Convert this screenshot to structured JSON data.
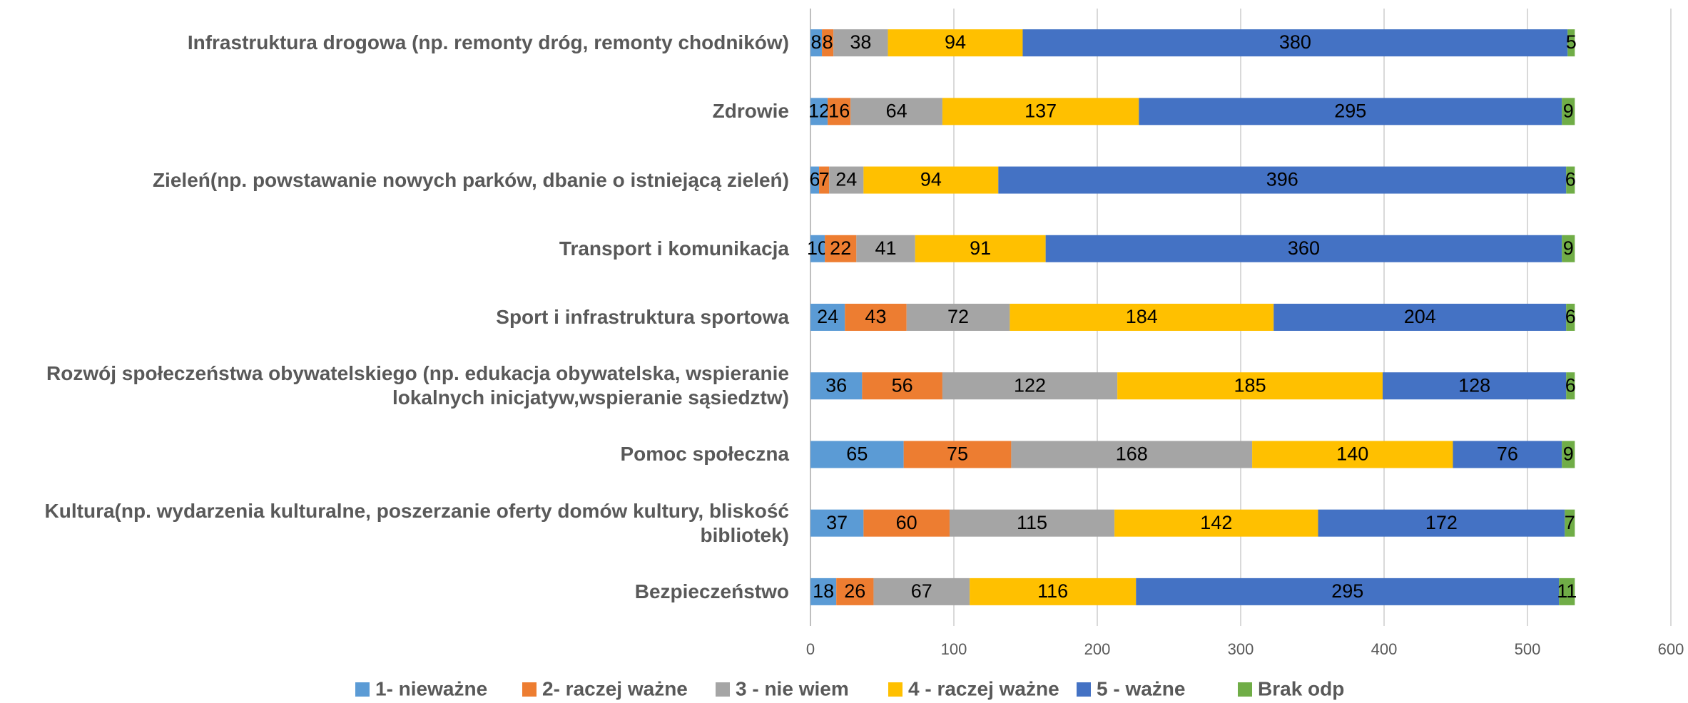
{
  "chart_data": {
    "type": "stacked_bar_horizontal",
    "categories": [
      "Infrastruktura drogowa (np. remonty dróg, remonty chodników)",
      "Zdrowie",
      "Zieleń(np. powstawanie nowych parków, dbanie o istniejącą zieleń)",
      "Transport i komunikacja",
      "Sport i infrastruktura sportowa",
      "Rozwój społeczeństwa obywatelskiego (np. edukacja obywatelska, wspieranie lokalnych inicjatyw,wspieranie sąsiedztw)",
      "Pomoc społeczna",
      "Kultura(np. wydarzenia kulturalne, poszerzanie oferty domów kultury, bliskość bibliotek)",
      "Bezpieczeństwo"
    ],
    "series": [
      {
        "name": "1- nieważne",
        "color": "#5b9bd5",
        "values": [
          8,
          12,
          6,
          10,
          24,
          36,
          65,
          37,
          18
        ]
      },
      {
        "name": "2- raczej ważne",
        "color": "#ed7d31",
        "values": [
          8,
          16,
          7,
          22,
          43,
          56,
          75,
          60,
          26
        ]
      },
      {
        "name": "3 - nie wiem",
        "color": "#a5a5a5",
        "values": [
          38,
          64,
          24,
          41,
          72,
          122,
          168,
          115,
          67
        ]
      },
      {
        "name": "4 - raczej ważne",
        "color": "#ffc000",
        "values": [
          94,
          137,
          94,
          91,
          184,
          185,
          140,
          142,
          116
        ]
      },
      {
        "name": "5 - ważne",
        "color": "#4472c4",
        "values": [
          380,
          295,
          396,
          360,
          204,
          128,
          76,
          172,
          295
        ]
      },
      {
        "name": "Brak odp",
        "color": "#70ad47",
        "values": [
          5,
          9,
          6,
          9,
          6,
          6,
          9,
          7,
          11
        ]
      }
    ],
    "xlim": [
      0,
      600
    ],
    "xticks": [
      0,
      100,
      200,
      300,
      400,
      500,
      600
    ],
    "grid": true,
    "legend": "bottom"
  }
}
